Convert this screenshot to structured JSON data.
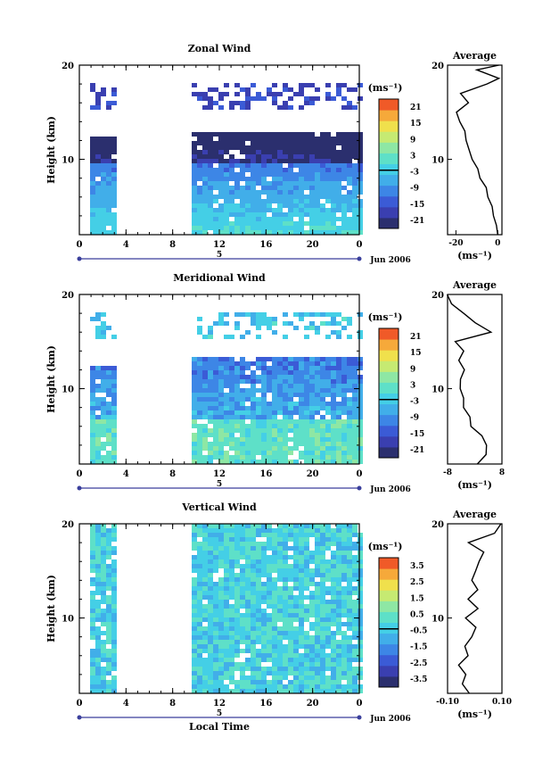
{
  "chart_data": [
    {
      "type": "heatmap",
      "title": "Zonal Wind",
      "ylabel": "Height (km)",
      "xlabel": "",
      "x_ticks": [
        "0",
        "4",
        "8",
        "12",
        "16",
        "20",
        "0"
      ],
      "y_ticks": [
        "10",
        "20"
      ],
      "xlim": [
        0,
        24
      ],
      "ylim": [
        2,
        20
      ],
      "date_marker": "5",
      "date_label": "Jun 2006",
      "colorbar_unit": "(ms⁻¹)",
      "colorbar_ticks": [
        "21",
        "15",
        "9",
        "3",
        "-3",
        "-9",
        "-15",
        "-21"
      ],
      "colorbar_range": [
        -24,
        24
      ],
      "data_gaps_hours": [
        [
          3,
          9.5
        ]
      ],
      "average_profile": {
        "title": "Average",
        "xlabel": "(ms⁻¹)",
        "x_ticks": [
          "-20",
          "0"
        ],
        "y_ticks": [
          "10",
          "20"
        ],
        "xlim": [
          -24,
          2
        ],
        "points": [
          [
            0.5,
            2
          ],
          [
            -1,
            3
          ],
          [
            -2,
            4
          ],
          [
            -3,
            5
          ],
          [
            -4.5,
            6
          ],
          [
            -6,
            7
          ],
          [
            -8,
            8
          ],
          [
            -10,
            9
          ],
          [
            -12,
            10
          ],
          [
            -14,
            11
          ],
          [
            -15,
            12
          ],
          [
            -16,
            13
          ],
          [
            -18,
            14
          ],
          [
            -20,
            15
          ],
          [
            -14,
            16
          ],
          [
            -18,
            17
          ],
          [
            -5,
            18
          ],
          [
            0,
            18.6
          ],
          [
            -10,
            19.5
          ],
          [
            0,
            20
          ]
        ]
      }
    },
    {
      "type": "heatmap",
      "title": "Meridional Wind",
      "ylabel": "Height (km)",
      "xlabel": "",
      "x_ticks": [
        "0",
        "4",
        "8",
        "12",
        "16",
        "20",
        "0"
      ],
      "y_ticks": [
        "10",
        "20"
      ],
      "xlim": [
        0,
        24
      ],
      "ylim": [
        2,
        20
      ],
      "date_marker": "5",
      "date_label": "Jun 2006",
      "colorbar_unit": "(ms⁻¹)",
      "colorbar_ticks": [
        "21",
        "15",
        "9",
        "3",
        "-3",
        "-9",
        "-15",
        "-21"
      ],
      "colorbar_range": [
        -24,
        24
      ],
      "data_gaps_hours": [
        [
          3,
          9.5
        ]
      ],
      "average_profile": {
        "title": "Average",
        "xlabel": "(ms⁻¹)",
        "x_ticks": [
          "-8",
          "8"
        ],
        "y_ticks": [
          "10",
          "20"
        ],
        "xlim": [
          -8,
          8
        ],
        "points": [
          [
            1,
            2
          ],
          [
            3,
            3
          ],
          [
            3.5,
            4
          ],
          [
            2,
            5
          ],
          [
            -1,
            6
          ],
          [
            -1.5,
            7
          ],
          [
            -3,
            8
          ],
          [
            -3.5,
            9
          ],
          [
            -4,
            10
          ],
          [
            -4.5,
            11
          ],
          [
            -3,
            12
          ],
          [
            -5,
            13
          ],
          [
            -3,
            14
          ],
          [
            -6,
            15
          ],
          [
            5,
            16
          ],
          [
            0,
            17
          ],
          [
            -3,
            18
          ],
          [
            -7,
            19
          ],
          [
            -8,
            20
          ]
        ]
      }
    },
    {
      "type": "heatmap",
      "title": "Vertical Wind",
      "ylabel": "Height (km)",
      "xlabel": "Local Time",
      "x_ticks": [
        "0",
        "4",
        "8",
        "12",
        "16",
        "20",
        "0"
      ],
      "y_ticks": [
        "10",
        "20"
      ],
      "xlim": [
        0,
        24
      ],
      "ylim": [
        2,
        20
      ],
      "date_marker": "5",
      "date_label": "Jun 2006",
      "colorbar_unit": "(ms⁻¹)",
      "colorbar_ticks": [
        "3.5",
        "2.5",
        "1.5",
        "0.5",
        "-0.5",
        "-1.5",
        "-2.5",
        "-3.5"
      ],
      "colorbar_range": [
        -4,
        4
      ],
      "data_gaps_hours": [
        [
          3,
          9.5
        ]
      ],
      "average_profile": {
        "title": "Average",
        "xlabel": "(ms⁻¹)",
        "x_ticks": [
          "-0.10",
          "0.10"
        ],
        "y_ticks": [
          "10",
          "20"
        ],
        "xlim": [
          -0.1,
          0.1
        ],
        "points": [
          [
            -0.02,
            2
          ],
          [
            -0.05,
            3
          ],
          [
            -0.03,
            4
          ],
          [
            -0.06,
            5
          ],
          [
            -0.02,
            6
          ],
          [
            -0.04,
            7
          ],
          [
            -0.01,
            8
          ],
          [
            0.0,
            9
          ],
          [
            -0.03,
            10
          ],
          [
            0.01,
            11
          ],
          [
            -0.02,
            12
          ],
          [
            0.01,
            13
          ],
          [
            -0.01,
            14
          ],
          [
            0.0,
            15
          ],
          [
            0.02,
            16
          ],
          [
            0.03,
            17
          ],
          [
            -0.02,
            18
          ],
          [
            0.07,
            19
          ],
          [
            0.1,
            20
          ]
        ]
      }
    }
  ]
}
